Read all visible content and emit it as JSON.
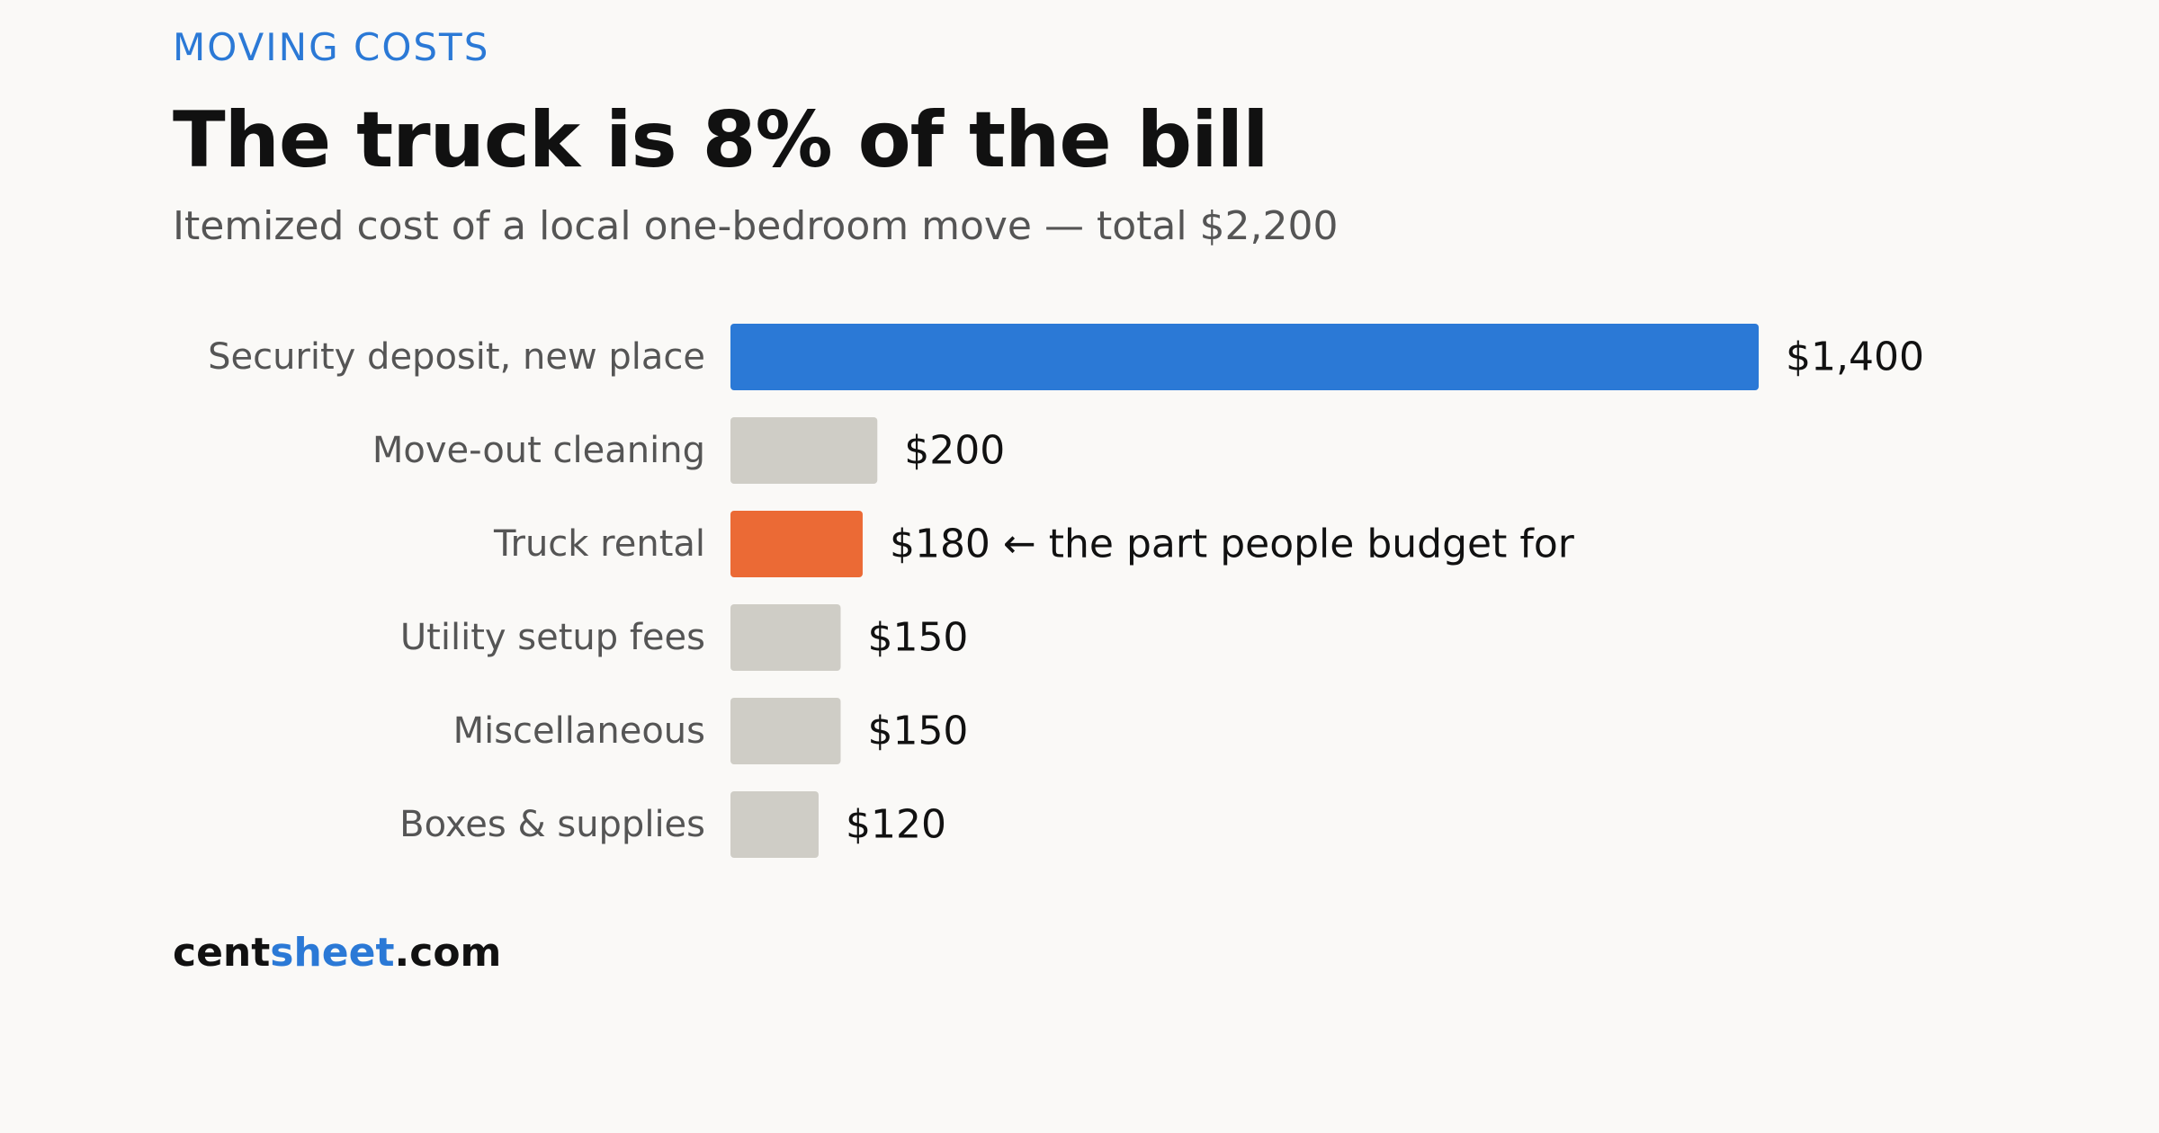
{
  "header": {
    "eyebrow": "MOVING COSTS",
    "title": "The truck is 8% of the bill",
    "subtitle": "Itemized cost of a local one-bedroom move — total $2,200"
  },
  "footer": {
    "brand_part1": "cent",
    "brand_part2": "sheet",
    "brand_part3": ".com"
  },
  "colors": {
    "accent": "#2b79d6",
    "highlight": "#eb6a35",
    "muted": "#cfcdc6"
  },
  "chart_data": {
    "type": "bar",
    "orientation": "horizontal",
    "title": "The truck is 8% of the bill",
    "subtitle": "Itemized cost of a local one-bedroom move — total $2,200",
    "categories": [
      "Security deposit, new place",
      "Move-out cleaning",
      "Truck rental",
      "Utility setup fees",
      "Miscellaneous",
      "Boxes & supplies"
    ],
    "values": [
      1400,
      200,
      180,
      150,
      150,
      120
    ],
    "value_labels": [
      "$1,400",
      "$200",
      "$180",
      "$150",
      "$150",
      "$120"
    ],
    "bar_colors": [
      "#2b79d6",
      "#cfcdc6",
      "#eb6a35",
      "#cfcdc6",
      "#cfcdc6",
      "#cfcdc6"
    ],
    "annotations": [
      {
        "category": "Truck rental",
        "text": "← the part people budget for"
      }
    ],
    "xlim": [
      0,
      1400
    ],
    "grid": false,
    "legend": "none"
  }
}
